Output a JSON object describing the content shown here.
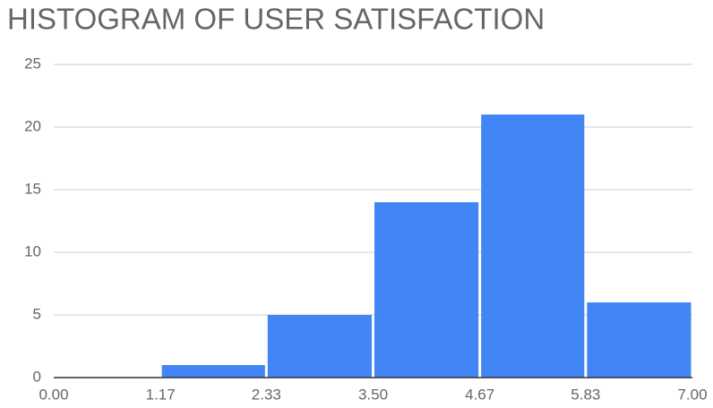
{
  "chart_data": {
    "type": "histogram",
    "title": "HISTOGRAM OF USER SATISFACTION",
    "bins": [
      0,
      1.17,
      2.33,
      3.5,
      4.67,
      5.83,
      7
    ],
    "values": [
      0,
      1,
      5,
      14,
      21,
      6
    ],
    "color": "#4285f4",
    "xlim": [
      0,
      7
    ],
    "xticks": [
      {
        "value": 0,
        "label": "0.00"
      },
      {
        "value": 1.17,
        "label": "1.17"
      },
      {
        "value": 2.33,
        "label": "2.33"
      },
      {
        "value": 3.5,
        "label": "3.50"
      },
      {
        "value": 4.67,
        "label": "4.67"
      },
      {
        "value": 5.83,
        "label": "5.83"
      },
      {
        "value": 7,
        "label": "7.00"
      }
    ],
    "ylim": [
      0,
      25
    ],
    "yticks": [
      0,
      5,
      10,
      15,
      20,
      25
    ],
    "grid": true
  }
}
